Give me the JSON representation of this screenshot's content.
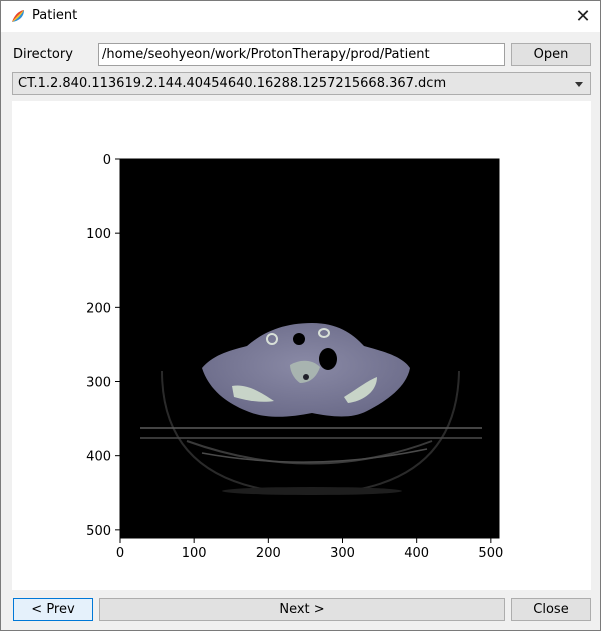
{
  "window": {
    "title": "Patient",
    "close_icon": "close-icon",
    "app_icon": "app-logo-icon"
  },
  "directory": {
    "label": "Directory",
    "value": "/home/seohyeon/work/ProtonTherapy/prod/Patient",
    "open_label": "Open"
  },
  "file_select": {
    "selected": "CT.1.2.840.113619.2.144.40454640.16288.1257215668.367.dcm",
    "icon": "chevron-down-icon"
  },
  "plot": {
    "x_ticks": [
      "0",
      "100",
      "200",
      "300",
      "400",
      "500"
    ],
    "y_ticks": [
      "0",
      "100",
      "200",
      "300",
      "400",
      "500"
    ]
  },
  "chart_data": {
    "type": "heatmap",
    "description_type": "image",
    "xlim": [
      0,
      511
    ],
    "ylim": [
      511,
      0
    ],
    "x_tick_values": [
      0,
      100,
      200,
      300,
      400,
      500
    ],
    "y_tick_values": [
      0,
      100,
      200,
      300,
      400,
      500
    ],
    "colormap": "bone",
    "grid": false
  },
  "buttons": {
    "prev_label": "< Prev",
    "next_label": "Next >",
    "close_label": "Close"
  }
}
